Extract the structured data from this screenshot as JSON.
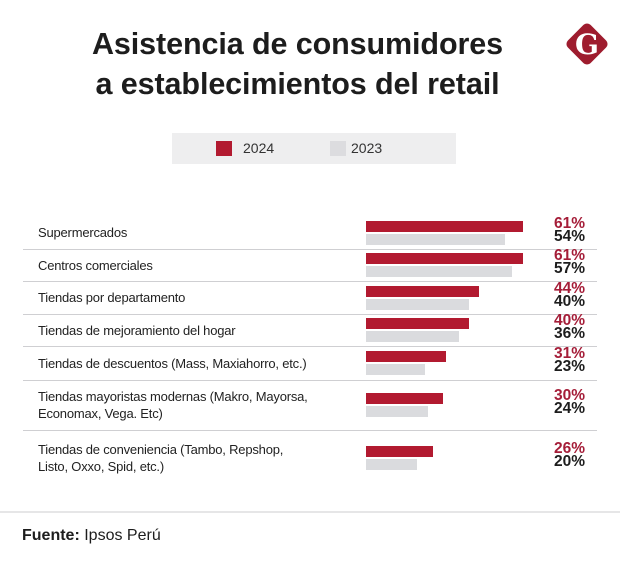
{
  "logo": {
    "letter": "G",
    "color": "#9e1c2e",
    "letter_color": "#ffffff"
  },
  "legend": {
    "placement": "top-center",
    "entries": [
      {
        "label": "2024",
        "color": "#b21a30"
      },
      {
        "label": "2023",
        "color": "#dcdcdf"
      }
    ]
  },
  "chart_data": {
    "type": "bar",
    "orientation": "horizontal",
    "title": "Asistencia de consumidores\na establecimientos del retail",
    "xlabel": "",
    "ylabel": "",
    "grid": false,
    "axis_visible": false,
    "value_unit": "%",
    "categories": [
      "Supermercados",
      "Centros comerciales",
      "Tiendas por departamento",
      "Tiendas de mejoramiento del hogar",
      "Tiendas de descuentos (Mass, Maxiahorro, etc.)",
      "Tiendas mayoristas modernas (Makro, Mayorsa,\nEconomax, Vega. Etc)",
      "Tiendas de conveniencia (Tambo, Repshop,\nListo, Oxxo, Spid, etc.)"
    ],
    "series": [
      {
        "name": "2024",
        "color": "#b21a30",
        "label_color": "#a51d38",
        "values": [
          61,
          61,
          44,
          40,
          31,
          30,
          26
        ],
        "labels": [
          "61%",
          "61%",
          "44%",
          "40%",
          "31%",
          "30%",
          "26%"
        ]
      },
      {
        "name": "2023",
        "color": "#dadbde",
        "label_color": "#1d1d1d",
        "values": [
          54,
          57,
          40,
          36,
          23,
          24,
          20
        ],
        "labels": [
          "54%",
          "57%",
          "40%",
          "36%",
          "23%",
          "24%",
          "20%"
        ]
      }
    ]
  },
  "footer": {
    "source_label": "Fuente:",
    "source_value": "Ipsos Perú"
  }
}
